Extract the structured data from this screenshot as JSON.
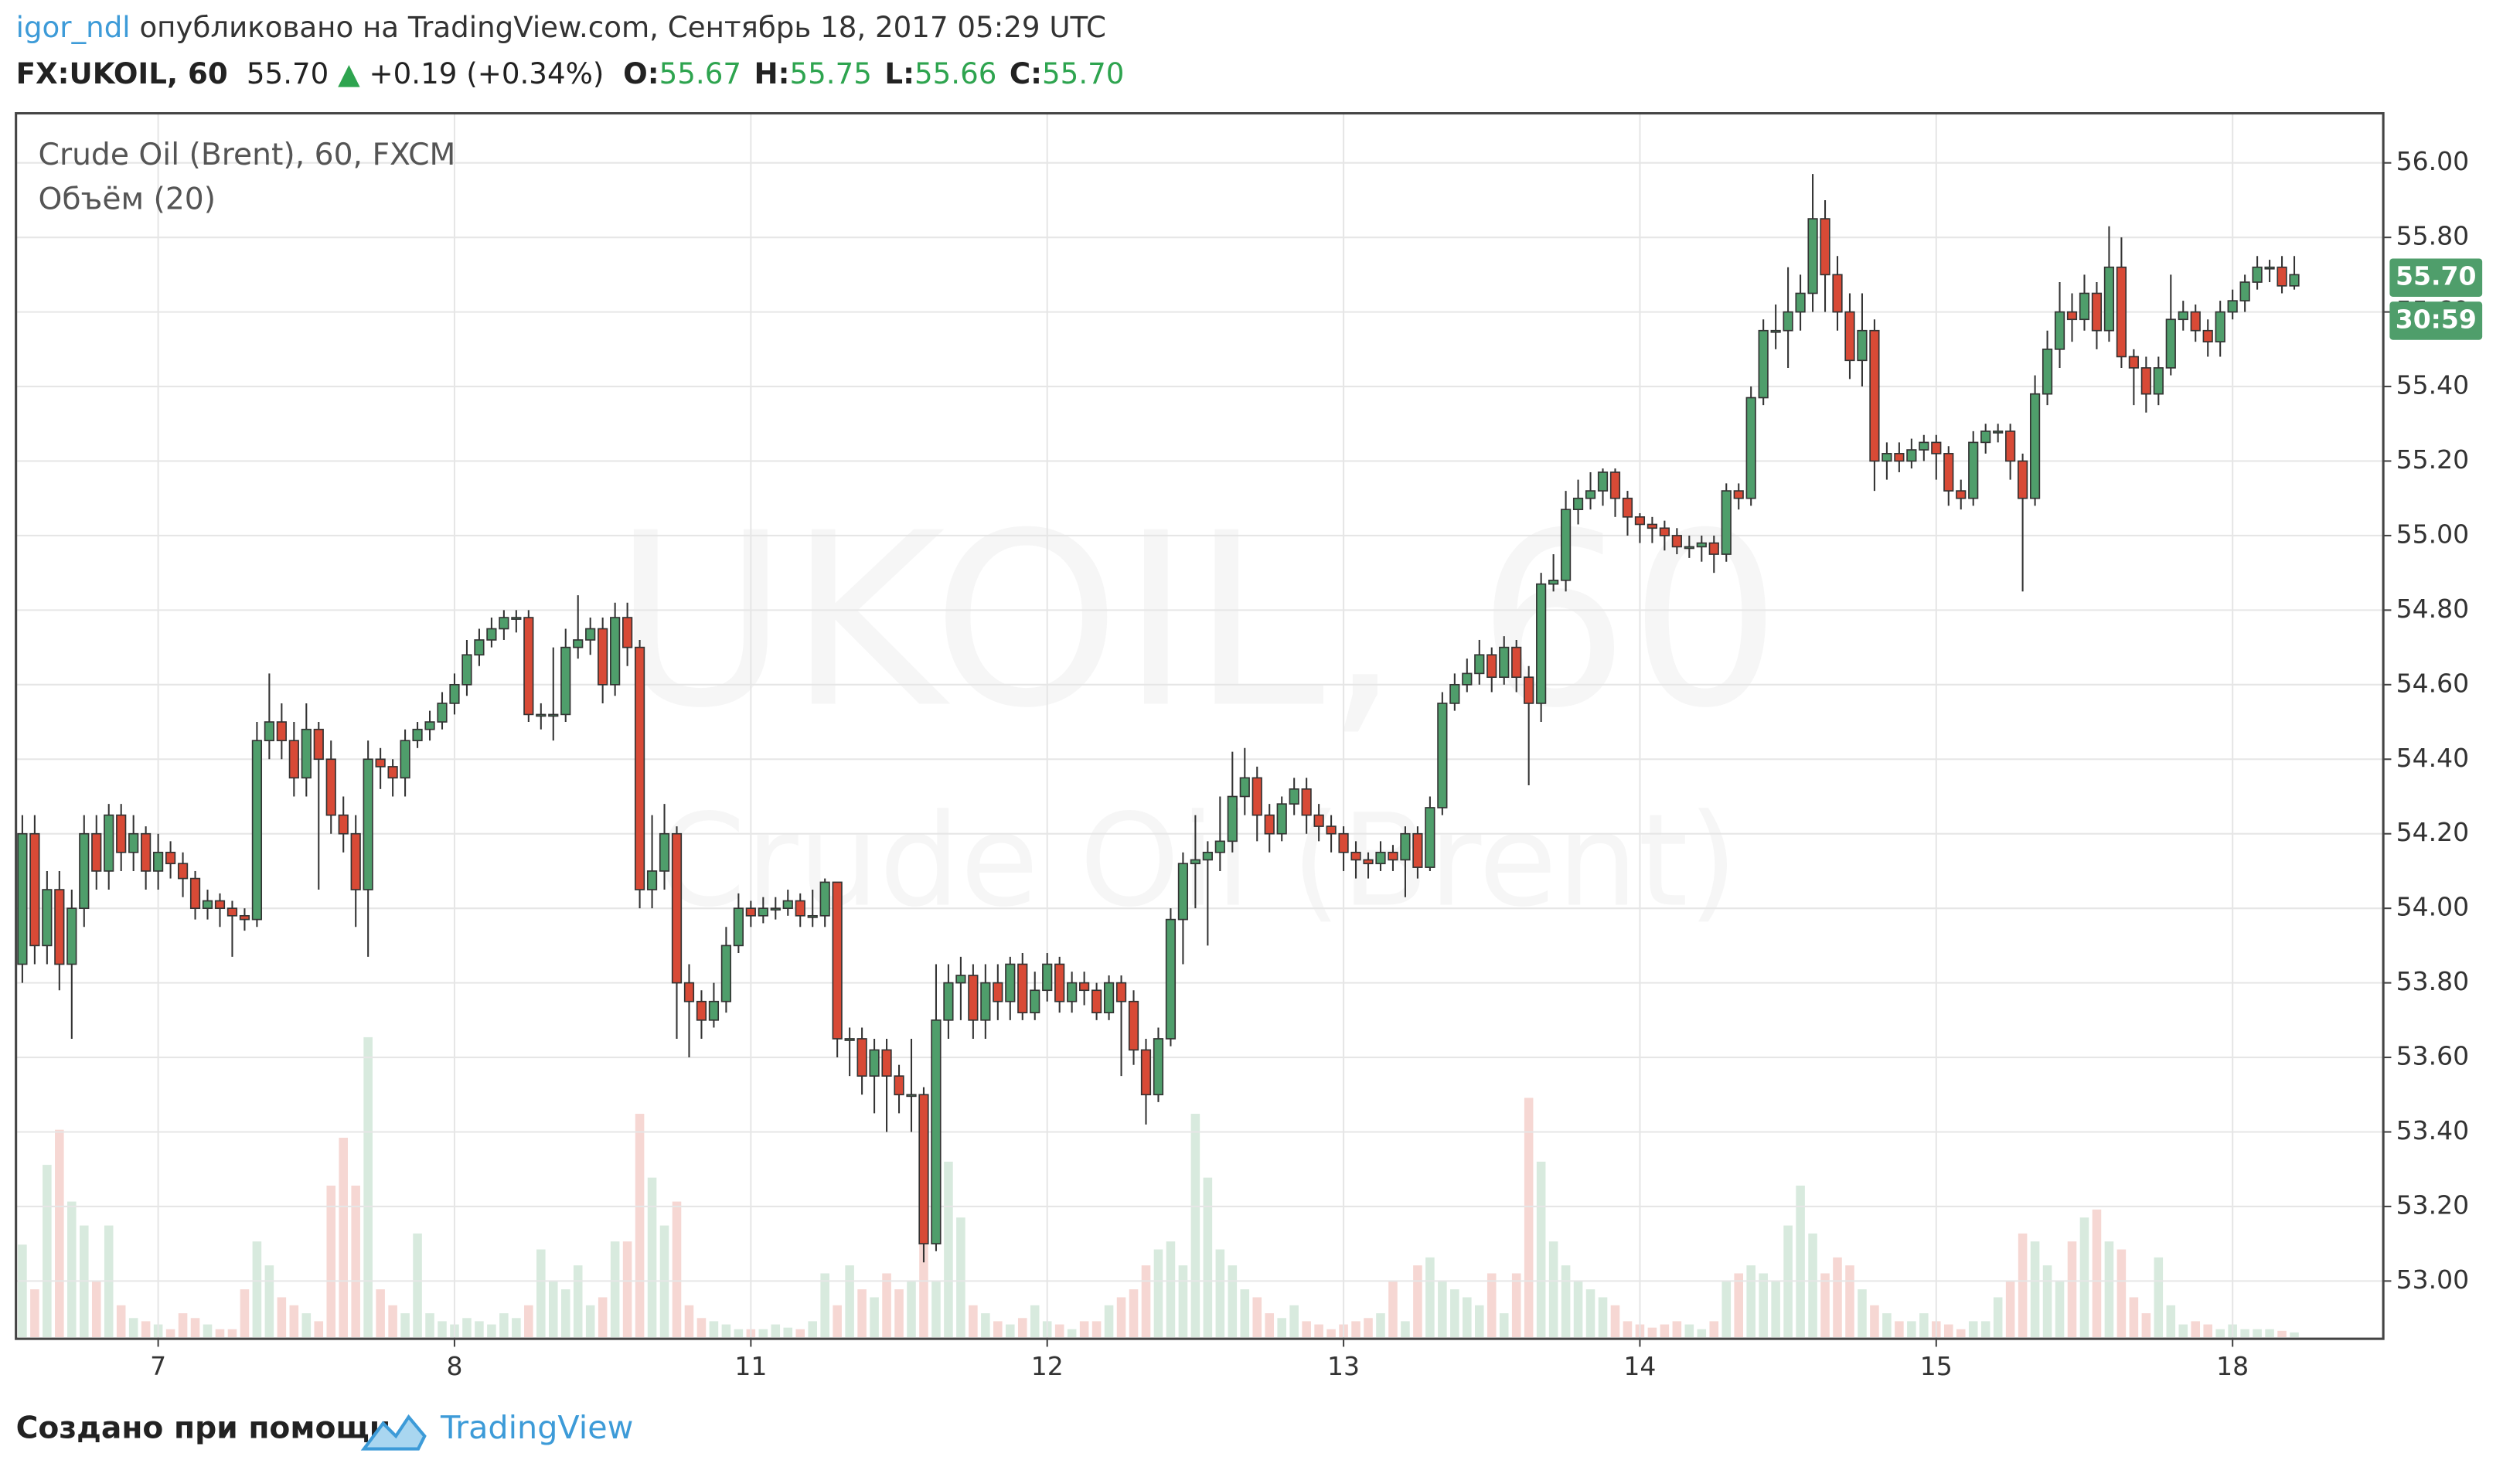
{
  "chart_data": {
    "type": "candlestick",
    "header": {
      "author": "igor_ndl",
      "published": "опубликовано на TradingView.com, Сентябрь 18, 2017 05:29 UTC",
      "symbol": "FX:UKOIL, 60",
      "price": "55.70",
      "arrow": "▲",
      "change": "+0.19 (+0.34%)",
      "ohlc": [
        {
          "label": "O:",
          "value": "55.67"
        },
        {
          "label": "H:",
          "value": "55.75"
        },
        {
          "label": "L:",
          "value": "55.66"
        },
        {
          "label": "C:",
          "value": "55.70"
        }
      ]
    },
    "legend_title": "Crude Oil (Brent), 60, FXCM",
    "volume_label": "Объём (20)",
    "watermark": "UKOIL, 60",
    "watermark_sub": "Crude Oil (Brent)",
    "price_label": "55.70",
    "timer_label": "30:59",
    "footer": {
      "created": "Создано при помощи",
      "brand": "TradingView"
    },
    "up_color": "#4f9e6b",
    "down_color": "#d84a36",
    "grid": true,
    "ylim": [
      52.845,
      56.133
    ],
    "yticks": [
      {
        "value": 53.0,
        "label": "53.00"
      },
      {
        "value": 53.2,
        "label": "53.20"
      },
      {
        "value": 53.4,
        "label": "53.40"
      },
      {
        "value": 53.6,
        "label": "53.60"
      },
      {
        "value": 53.8,
        "label": "53.80"
      },
      {
        "value": 54.0,
        "label": "54.00"
      },
      {
        "value": 54.2,
        "label": "54.20"
      },
      {
        "value": 54.4,
        "label": "54.40"
      },
      {
        "value": 54.6,
        "label": "54.60"
      },
      {
        "value": 54.8,
        "label": "54.80"
      },
      {
        "value": 55.0,
        "label": "55.00"
      },
      {
        "value": 55.2,
        "label": "55.20"
      },
      {
        "value": 55.4,
        "label": "55.40"
      },
      {
        "value": 55.6,
        "label": "55.60"
      },
      {
        "value": 55.8,
        "label": "55.80"
      },
      {
        "value": 56.0,
        "label": "56.00"
      }
    ],
    "categories": [
      null,
      null,
      null,
      null,
      null,
      null,
      null,
      null,
      null,
      null,
      null,
      "7",
      null,
      null,
      null,
      null,
      null,
      null,
      null,
      null,
      null,
      null,
      null,
      null,
      null,
      null,
      null,
      null,
      null,
      null,
      null,
      null,
      null,
      null,
      null,
      "8",
      null,
      null,
      null,
      null,
      null,
      null,
      null,
      null,
      null,
      null,
      null,
      null,
      null,
      null,
      null,
      null,
      null,
      null,
      null,
      null,
      null,
      null,
      null,
      "11",
      null,
      null,
      null,
      null,
      null,
      null,
      null,
      null,
      null,
      null,
      null,
      null,
      null,
      null,
      null,
      null,
      null,
      null,
      null,
      null,
      null,
      null,
      null,
      "12",
      null,
      null,
      null,
      null,
      null,
      null,
      null,
      null,
      null,
      null,
      null,
      null,
      null,
      null,
      null,
      null,
      null,
      null,
      null,
      null,
      null,
      null,
      null,
      "13",
      null,
      null,
      null,
      null,
      null,
      null,
      null,
      null,
      null,
      null,
      null,
      null,
      null,
      null,
      null,
      null,
      null,
      null,
      null,
      null,
      null,
      null,
      null,
      "14",
      null,
      null,
      null,
      null,
      null,
      null,
      null,
      null,
      null,
      null,
      null,
      null,
      null,
      null,
      null,
      null,
      null,
      null,
      null,
      null,
      null,
      null,
      null,
      "15",
      null,
      null,
      null,
      null,
      null,
      null,
      null,
      null,
      null,
      null,
      null,
      null,
      null,
      null,
      null,
      null,
      null,
      null,
      null,
      null,
      null,
      null,
      null,
      "18",
      null,
      null,
      null,
      null,
      null
    ],
    "open": [
      53.85,
      54.2,
      53.9,
      54.05,
      53.85,
      54.0,
      54.2,
      54.1,
      54.25,
      54.15,
      54.2,
      54.1,
      54.15,
      54.12,
      54.08,
      54.0,
      54.02,
      54.0,
      53.98,
      53.97,
      54.45,
      54.5,
      54.45,
      54.35,
      54.48,
      54.4,
      54.25,
      54.2,
      54.05,
      54.4,
      54.38,
      54.35,
      54.45,
      54.48,
      54.5,
      54.55,
      54.6,
      54.68,
      54.72,
      54.75,
      54.78,
      54.78,
      54.52,
      54.52,
      54.52,
      54.7,
      54.72,
      54.75,
      54.6,
      54.78,
      54.7,
      54.05,
      54.1,
      54.2,
      53.8,
      53.75,
      53.7,
      53.75,
      53.9,
      54.0,
      53.98,
      54.0,
      54.0,
      54.02,
      53.98,
      53.98,
      54.07,
      53.65,
      53.65,
      53.55,
      53.62,
      53.55,
      53.5,
      53.5,
      53.1,
      53.7,
      53.8,
      53.82,
      53.7,
      53.8,
      53.75,
      53.85,
      53.72,
      53.78,
      53.85,
      53.75,
      53.8,
      53.78,
      53.72,
      53.8,
      53.75,
      53.62,
      53.5,
      53.65,
      53.97,
      54.12,
      54.13,
      54.15,
      54.18,
      54.3,
      54.35,
      54.25,
      54.2,
      54.28,
      54.32,
      54.25,
      54.22,
      54.2,
      54.15,
      54.13,
      54.12,
      54.15,
      54.13,
      54.2,
      54.11,
      54.27,
      54.55,
      54.6,
      54.63,
      54.68,
      54.62,
      54.7,
      54.62,
      54.55,
      54.87,
      54.88,
      55.07,
      55.1,
      55.12,
      55.17,
      55.1,
      55.05,
      55.03,
      55.02,
      55.0,
      54.97,
      54.97,
      54.98,
      54.95,
      55.12,
      55.1,
      55.37,
      55.55,
      55.55,
      55.6,
      55.65,
      55.85,
      55.7,
      55.6,
      55.47,
      55.55,
      55.2,
      55.22,
      55.2,
      55.23,
      55.25,
      55.22,
      55.12,
      55.1,
      55.25,
      55.28,
      55.28,
      55.2,
      55.1,
      55.38,
      55.5,
      55.6,
      55.58,
      55.65,
      55.55,
      55.72,
      55.48,
      55.45,
      55.38,
      55.45,
      55.58,
      55.6,
      55.55,
      55.52,
      55.6,
      55.63,
      55.68,
      55.72,
      55.72,
      55.67
    ],
    "high": [
      54.25,
      54.25,
      54.1,
      54.1,
      54.05,
      54.25,
      54.25,
      54.28,
      54.28,
      54.25,
      54.22,
      54.2,
      54.18,
      54.15,
      54.1,
      54.05,
      54.04,
      54.02,
      54.0,
      54.5,
      54.63,
      54.55,
      54.5,
      54.55,
      54.5,
      54.45,
      54.3,
      54.25,
      54.45,
      54.43,
      54.4,
      54.48,
      54.5,
      54.53,
      54.58,
      54.63,
      54.72,
      54.75,
      54.78,
      54.8,
      54.8,
      54.8,
      54.55,
      54.7,
      54.75,
      54.84,
      54.78,
      54.78,
      54.82,
      54.82,
      54.72,
      54.25,
      54.28,
      54.22,
      53.85,
      53.78,
      53.8,
      53.95,
      54.04,
      54.02,
      54.03,
      54.03,
      54.05,
      54.04,
      54.05,
      54.08,
      54.07,
      53.68,
      53.68,
      53.65,
      53.65,
      53.58,
      53.65,
      53.52,
      53.85,
      53.85,
      53.87,
      53.85,
      53.85,
      53.85,
      53.87,
      53.88,
      53.83,
      53.88,
      53.87,
      53.83,
      53.83,
      53.8,
      53.82,
      53.82,
      53.78,
      53.65,
      53.68,
      54.0,
      54.15,
      54.25,
      54.18,
      54.3,
      54.42,
      54.43,
      54.38,
      54.28,
      54.3,
      54.35,
      54.35,
      54.28,
      54.25,
      54.22,
      54.18,
      54.15,
      54.18,
      54.17,
      54.22,
      54.22,
      54.3,
      54.58,
      54.63,
      54.67,
      54.72,
      54.7,
      54.73,
      54.72,
      54.65,
      54.9,
      54.95,
      55.12,
      55.15,
      55.17,
      55.18,
      55.18,
      55.12,
      55.06,
      55.05,
      55.04,
      55.02,
      55.0,
      55.0,
      55.0,
      55.14,
      55.14,
      55.4,
      55.58,
      55.62,
      55.72,
      55.7,
      55.97,
      55.9,
      55.75,
      55.65,
      55.65,
      55.58,
      55.25,
      55.25,
      55.26,
      55.27,
      55.27,
      55.24,
      55.15,
      55.28,
      55.3,
      55.3,
      55.3,
      55.22,
      55.43,
      55.55,
      55.68,
      55.65,
      55.7,
      55.68,
      55.83,
      55.8,
      55.5,
      55.48,
      55.48,
      55.7,
      55.63,
      55.62,
      55.58,
      55.63,
      55.66,
      55.7,
      55.75,
      55.74,
      55.75,
      55.75
    ],
    "low": [
      53.8,
      53.85,
      53.85,
      53.78,
      53.65,
      53.95,
      54.05,
      54.05,
      54.1,
      54.1,
      54.05,
      54.05,
      54.08,
      54.03,
      53.97,
      53.97,
      53.95,
      53.87,
      53.94,
      53.95,
      54.4,
      54.4,
      54.3,
      54.3,
      54.05,
      54.2,
      54.15,
      53.95,
      53.87,
      54.32,
      54.3,
      54.3,
      54.43,
      54.45,
      54.48,
      54.52,
      54.57,
      54.65,
      54.7,
      54.72,
      54.74,
      54.5,
      54.48,
      54.45,
      54.5,
      54.67,
      54.68,
      54.55,
      54.57,
      54.65,
      54.0,
      54.0,
      54.05,
      53.65,
      53.6,
      53.65,
      53.68,
      53.72,
      53.88,
      53.95,
      53.96,
      53.97,
      53.98,
      53.95,
      53.95,
      53.95,
      53.6,
      53.55,
      53.5,
      53.45,
      53.4,
      53.45,
      53.4,
      53.05,
      53.08,
      53.65,
      53.7,
      53.65,
      53.65,
      53.7,
      53.7,
      53.7,
      53.7,
      53.75,
      53.72,
      53.72,
      53.74,
      53.7,
      53.7,
      53.55,
      53.58,
      53.42,
      53.48,
      53.63,
      53.85,
      54.0,
      53.9,
      54.1,
      54.15,
      54.25,
      54.18,
      54.15,
      54.18,
      54.25,
      54.2,
      54.18,
      54.15,
      54.1,
      54.08,
      54.08,
      54.1,
      54.1,
      54.03,
      54.08,
      54.1,
      54.25,
      54.53,
      54.58,
      54.6,
      54.58,
      54.6,
      54.58,
      54.33,
      54.5,
      54.85,
      54.85,
      55.03,
      55.07,
      55.08,
      55.05,
      55.0,
      54.98,
      54.98,
      54.96,
      54.95,
      54.94,
      54.93,
      54.9,
      54.93,
      55.07,
      55.08,
      55.35,
      55.5,
      55.45,
      55.55,
      55.6,
      55.6,
      55.55,
      55.42,
      55.4,
      55.12,
      55.15,
      55.17,
      55.18,
      55.2,
      55.15,
      55.08,
      55.07,
      55.08,
      55.22,
      55.25,
      55.15,
      54.85,
      55.08,
      55.35,
      55.45,
      55.52,
      55.55,
      55.5,
      55.52,
      55.45,
      55.35,
      55.33,
      55.35,
      55.43,
      55.55,
      55.52,
      55.48,
      55.48,
      55.58,
      55.6,
      55.66,
      55.68,
      55.65,
      55.66
    ],
    "close": [
      54.2,
      53.9,
      54.05,
      53.85,
      54.0,
      54.2,
      54.1,
      54.25,
      54.15,
      54.2,
      54.1,
      54.15,
      54.12,
      54.08,
      54.0,
      54.02,
      54.0,
      53.98,
      53.97,
      54.45,
      54.5,
      54.45,
      54.35,
      54.48,
      54.4,
      54.25,
      54.2,
      54.05,
      54.4,
      54.38,
      54.35,
      54.45,
      54.48,
      54.5,
      54.55,
      54.6,
      54.68,
      54.72,
      54.75,
      54.78,
      54.78,
      54.52,
      54.52,
      54.52,
      54.7,
      54.72,
      54.75,
      54.6,
      54.78,
      54.7,
      54.05,
      54.1,
      54.2,
      53.8,
      53.75,
      53.7,
      53.75,
      53.9,
      54.0,
      53.98,
      54.0,
      54.0,
      54.02,
      53.98,
      53.98,
      54.07,
      53.65,
      53.65,
      53.55,
      53.62,
      53.55,
      53.5,
      53.5,
      53.1,
      53.7,
      53.8,
      53.82,
      53.7,
      53.8,
      53.75,
      53.85,
      53.72,
      53.78,
      53.85,
      53.75,
      53.8,
      53.78,
      53.72,
      53.8,
      53.75,
      53.62,
      53.5,
      53.65,
      53.97,
      54.12,
      54.13,
      54.15,
      54.18,
      54.3,
      54.35,
      54.25,
      54.2,
      54.28,
      54.32,
      54.25,
      54.22,
      54.2,
      54.15,
      54.13,
      54.12,
      54.15,
      54.13,
      54.2,
      54.11,
      54.27,
      54.55,
      54.6,
      54.63,
      54.68,
      54.62,
      54.7,
      54.62,
      54.55,
      54.87,
      54.88,
      55.07,
      55.1,
      55.12,
      55.17,
      55.1,
      55.05,
      55.03,
      55.02,
      55.0,
      54.97,
      54.97,
      54.98,
      54.95,
      55.12,
      55.1,
      55.37,
      55.55,
      55.55,
      55.6,
      55.65,
      55.85,
      55.7,
      55.6,
      55.47,
      55.55,
      55.2,
      55.22,
      55.2,
      55.23,
      55.25,
      55.22,
      55.12,
      55.1,
      55.25,
      55.28,
      55.28,
      55.2,
      55.1,
      55.38,
      55.5,
      55.6,
      55.58,
      55.65,
      55.55,
      55.72,
      55.48,
      55.45,
      55.38,
      55.45,
      55.58,
      55.6,
      55.55,
      55.52,
      55.6,
      55.63,
      55.68,
      55.72,
      55.72,
      55.67,
      55.7
    ],
    "volume": [
      58,
      30,
      108,
      130,
      85,
      70,
      35,
      70,
      20,
      12,
      10,
      8,
      5,
      15,
      12,
      8,
      5,
      5,
      30,
      60,
      45,
      25,
      20,
      15,
      10,
      95,
      125,
      95,
      188,
      30,
      20,
      15,
      65,
      15,
      10,
      8,
      12,
      10,
      8,
      15,
      12,
      20,
      55,
      35,
      30,
      45,
      20,
      25,
      60,
      60,
      140,
      100,
      70,
      85,
      20,
      12,
      10,
      8,
      5,
      5,
      5,
      8,
      6,
      5,
      10,
      40,
      20,
      45,
      30,
      25,
      40,
      30,
      35,
      60,
      35,
      110,
      75,
      20,
      15,
      10,
      8,
      12,
      20,
      10,
      8,
      5,
      10,
      10,
      20,
      25,
      30,
      45,
      55,
      60,
      45,
      140,
      100,
      55,
      45,
      30,
      25,
      15,
      12,
      20,
      10,
      8,
      5,
      8,
      10,
      12,
      15,
      35,
      10,
      45,
      50,
      35,
      30,
      25,
      20,
      40,
      15,
      40,
      150,
      110,
      60,
      45,
      35,
      30,
      25,
      20,
      10,
      8,
      6,
      8,
      10,
      8,
      5,
      10,
      35,
      40,
      45,
      40,
      35,
      70,
      95,
      65,
      40,
      50,
      45,
      30,
      20,
      15,
      10,
      10,
      15,
      10,
      8,
      5,
      10,
      10,
      25,
      35,
      65,
      60,
      45,
      35,
      60,
      75,
      80,
      60,
      55,
      25,
      15,
      50,
      20,
      8,
      10,
      8,
      5,
      8,
      5,
      5,
      5,
      4,
      3
    ]
  }
}
